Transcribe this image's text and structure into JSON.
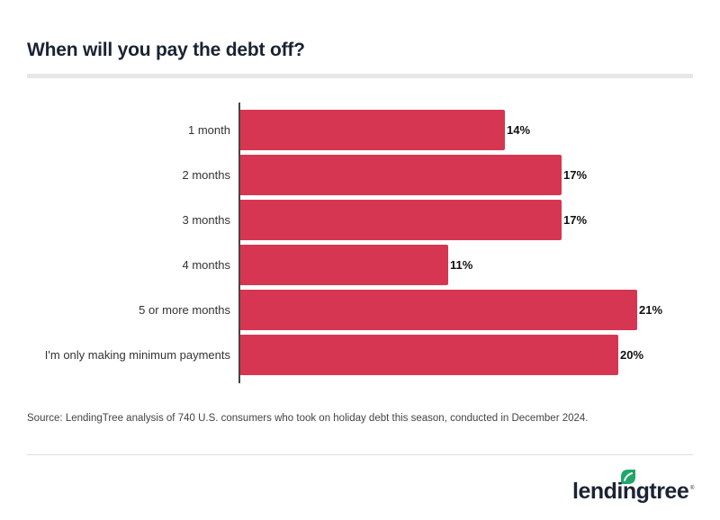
{
  "header": {
    "title": "When will you pay the debt off?"
  },
  "footer": {
    "source": "Source: LendingTree analysis of 740 U.S. consumers who took on holiday debt this season, conducted in December 2024.",
    "logo_text": "lendingtree",
    "logo_reg": "®"
  },
  "colors": {
    "bar": "#d63651",
    "title": "#1a2332",
    "logo_leaf": "#1fa66b"
  },
  "chart_data": {
    "type": "bar",
    "orientation": "horizontal",
    "title": "When will you pay the debt off?",
    "xlabel": "",
    "ylabel": "",
    "categories": [
      "1 month",
      "2 months",
      "3 months",
      "4 months",
      "5 or more months",
      "I'm only making minimum payments"
    ],
    "values": [
      14,
      17,
      17,
      11,
      21,
      20
    ],
    "value_labels": [
      "14%",
      "17%",
      "17%",
      "11%",
      "21%",
      "20%"
    ],
    "unit": "%",
    "grid": false,
    "legend": null
  },
  "rows": [
    {
      "label": "1 month",
      "value": "14%"
    },
    {
      "label": "2 months",
      "value": "17%"
    },
    {
      "label": "3 months",
      "value": "17%"
    },
    {
      "label": "4 months",
      "value": "11%"
    },
    {
      "label": "5 or more months",
      "value": "21%"
    },
    {
      "label": "I'm only making minimum payments",
      "value": "20%"
    }
  ]
}
